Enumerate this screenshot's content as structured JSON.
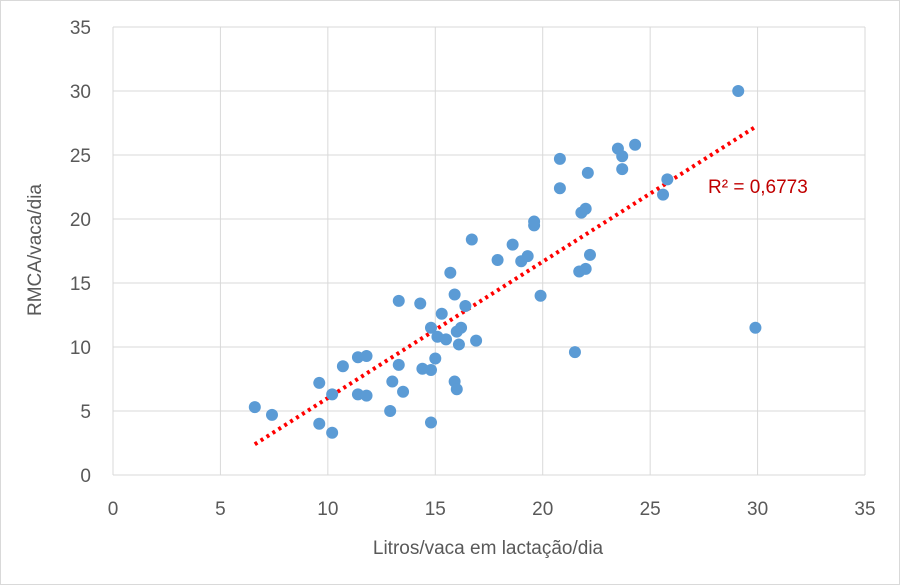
{
  "chart_data": {
    "type": "scatter",
    "title": "",
    "xlabel": "Litros/vaca em lactação/dia",
    "ylabel": "RMCA/vaca/dia",
    "xlim": [
      0,
      35
    ],
    "ylim": [
      0,
      35
    ],
    "x_ticks": [
      "0",
      "5",
      "10",
      "15",
      "20",
      "25",
      "30",
      "35"
    ],
    "y_ticks": [
      "0",
      "5",
      "10",
      "15",
      "20",
      "25",
      "30",
      "35"
    ],
    "grid": true,
    "legend": "none",
    "series": [
      {
        "color": "#5b9bd5",
        "points": [
          [
            6.6,
            5.3
          ],
          [
            7.4,
            4.7
          ],
          [
            9.6,
            7.2
          ],
          [
            9.6,
            4.0
          ],
          [
            10.2,
            6.3
          ],
          [
            10.2,
            3.3
          ],
          [
            10.7,
            8.5
          ],
          [
            11.4,
            9.2
          ],
          [
            11.4,
            6.3
          ],
          [
            11.8,
            9.3
          ],
          [
            11.8,
            6.2
          ],
          [
            12.9,
            5.0
          ],
          [
            13.0,
            7.3
          ],
          [
            13.3,
            13.6
          ],
          [
            13.3,
            8.6
          ],
          [
            13.5,
            6.5
          ],
          [
            14.3,
            13.4
          ],
          [
            14.4,
            8.3
          ],
          [
            14.8,
            11.5
          ],
          [
            14.8,
            8.2
          ],
          [
            14.8,
            4.1
          ],
          [
            15.0,
            9.1
          ],
          [
            15.1,
            10.8
          ],
          [
            15.3,
            12.6
          ],
          [
            15.5,
            10.6
          ],
          [
            15.7,
            15.8
          ],
          [
            15.9,
            14.1
          ],
          [
            15.9,
            7.3
          ],
          [
            16.0,
            6.7
          ],
          [
            16.0,
            11.2
          ],
          [
            16.1,
            10.2
          ],
          [
            16.2,
            11.5
          ],
          [
            16.4,
            13.2
          ],
          [
            16.7,
            18.4
          ],
          [
            16.9,
            10.5
          ],
          [
            17.9,
            16.8
          ],
          [
            18.6,
            18.0
          ],
          [
            19.0,
            16.7
          ],
          [
            19.3,
            17.1
          ],
          [
            19.6,
            19.5
          ],
          [
            19.6,
            19.8
          ],
          [
            19.9,
            14.0
          ],
          [
            20.8,
            24.7
          ],
          [
            20.8,
            22.4
          ],
          [
            21.5,
            9.6
          ],
          [
            21.7,
            15.9
          ],
          [
            21.8,
            20.5
          ],
          [
            22.0,
            20.8
          ],
          [
            22.0,
            16.1
          ],
          [
            22.1,
            23.6
          ],
          [
            22.2,
            17.2
          ],
          [
            23.5,
            25.5
          ],
          [
            23.7,
            24.9
          ],
          [
            23.7,
            23.9
          ],
          [
            24.3,
            25.8
          ],
          [
            25.6,
            21.9
          ],
          [
            25.8,
            23.1
          ],
          [
            29.1,
            30.0
          ],
          [
            29.9,
            11.5
          ]
        ]
      }
    ],
    "trendline": {
      "type": "linear",
      "style": "dotted",
      "color": "#ff0000",
      "x_range": [
        6.6,
        29.9
      ],
      "y_range": [
        2.4,
        27.2
      ],
      "label": "R² = 0,6773",
      "label_color": "#c00000"
    }
  }
}
